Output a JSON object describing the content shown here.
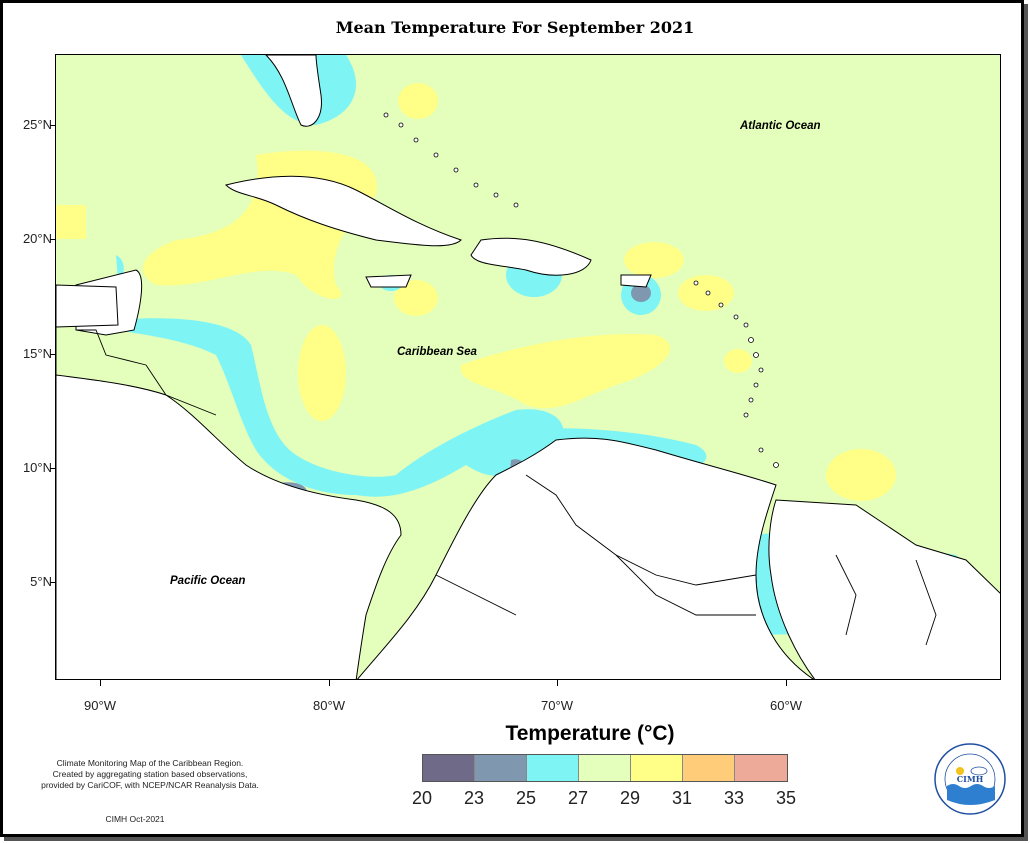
{
  "title": "Mean Temperature For September 2021",
  "axes": {
    "lat_labels": [
      "25°N",
      "20°N",
      "15°N",
      "10°N",
      "5°N"
    ],
    "lon_labels": [
      "90°W",
      "80°W",
      "70°W",
      "60°W"
    ]
  },
  "map_labels": {
    "atlantic": "Atlantic Ocean",
    "caribbean": "Caribbean Sea",
    "pacific": "Pacific Ocean"
  },
  "legend": {
    "title": "Temperature (°C)",
    "ticks": [
      "20",
      "23",
      "25",
      "27",
      "29",
      "31",
      "33",
      "35"
    ],
    "colors": [
      "#6e6a88",
      "#7f98b0",
      "#7ff4f4",
      "#e3ffbb",
      "#ffff88",
      "#ffcc7a",
      "#eeaa98"
    ]
  },
  "credits": {
    "line1": "Climate Monitoring Map of the Caribbean Region.",
    "line2": "Created by aggregating station based observations,",
    "line3": "provided by CariCOF, with NCEP/NCAR Reanalysis Data.",
    "date": "CIMH Oct-2021"
  },
  "logo": {
    "text": "CIMH",
    "ring_text": "Caribbean Institute for Meteorology and Hydrology"
  }
}
